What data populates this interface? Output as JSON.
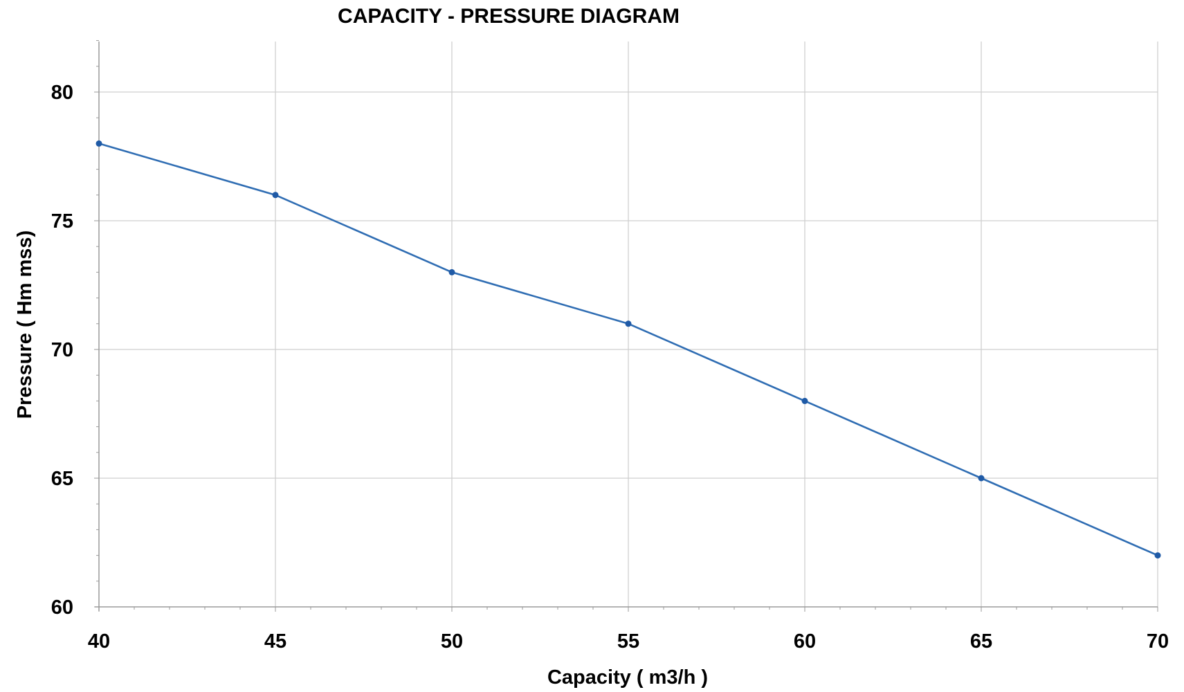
{
  "chart_data": {
    "type": "line",
    "title": "CAPACITY - PRESSURE DIAGRAM",
    "xlabel": "Capacity ( m3/h )",
    "ylabel": "Pressure ( Hm mss)",
    "xlim": [
      40,
      70
    ],
    "ylim": [
      60,
      82
    ],
    "x_ticks": [
      40,
      45,
      50,
      55,
      60,
      65,
      70
    ],
    "y_ticks": [
      60,
      65,
      70,
      75,
      80
    ],
    "grid": true,
    "legend": "none",
    "series": [
      {
        "color": "#2f6db3",
        "marker_color": "#1f5aa6",
        "points": [
          {
            "x": 40,
            "y": 78
          },
          {
            "x": 45,
            "y": 76
          },
          {
            "x": 50,
            "y": 73
          },
          {
            "x": 55,
            "y": 71
          },
          {
            "x": 60,
            "y": 68
          },
          {
            "x": 65,
            "y": 65
          },
          {
            "x": 70,
            "y": 62
          }
        ]
      }
    ]
  }
}
